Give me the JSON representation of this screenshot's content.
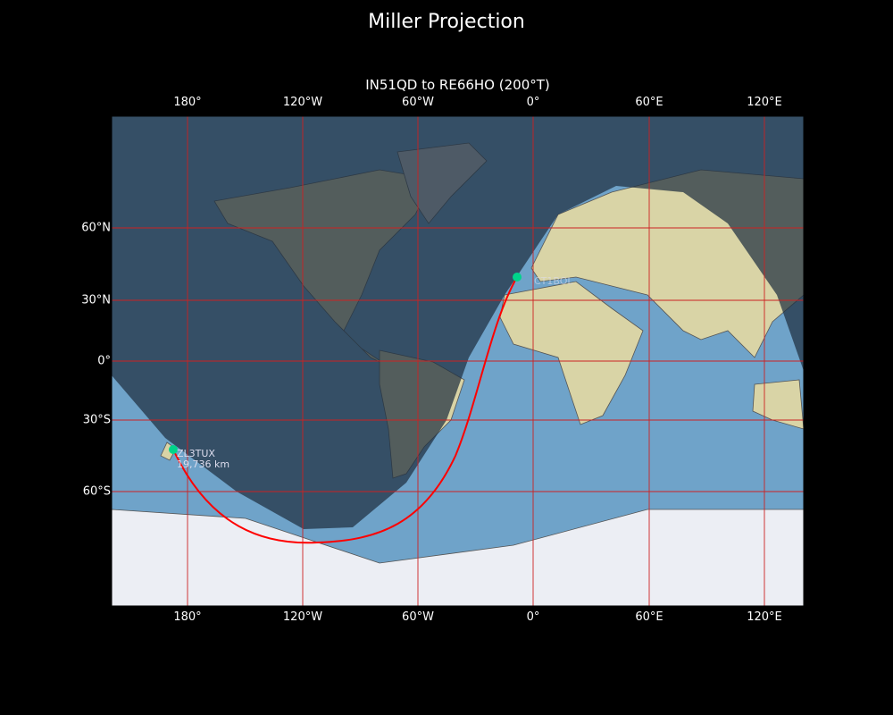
{
  "title": "Miller Projection",
  "subtitle": "IN51QD to RE66HO (200°T)",
  "lon_ticks": [
    "180°",
    "120°W",
    "60°W",
    "0°",
    "60°E",
    "120°E"
  ],
  "lat_ticks": [
    "60°N",
    "30°N",
    "0°",
    "30°S",
    "60°S"
  ],
  "stations": [
    {
      "call": "CT1BOL",
      "lat": 39.5,
      "lon": -8.5,
      "distance": ""
    },
    {
      "call": "ZL3TUX",
      "lat": -43.5,
      "lon": 172.5,
      "distance": "19,736 km"
    }
  ],
  "colors": {
    "ocean": "#6fa3c9",
    "land": "#d9d4a6",
    "night": "#1e2f40",
    "route": "#ff0000",
    "station": "#00d48a",
    "grid": "#cc2222"
  }
}
